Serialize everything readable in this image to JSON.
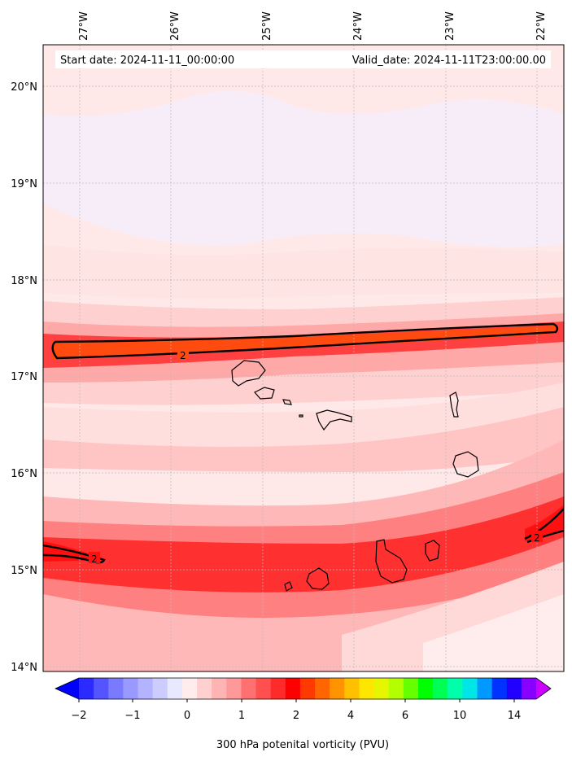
{
  "header": {
    "start_date": "Start date: 2024-11-11_00:00:00",
    "valid_date": "Valid_date: 2024-11-11T23:00:00.00"
  },
  "map": {
    "longitude_labels": [
      "27°W",
      "26°W",
      "25°W",
      "24°W",
      "23°W",
      "22°W"
    ],
    "latitude_labels": [
      "20°N",
      "19°N",
      "18°N",
      "17°N",
      "16°N",
      "15°N",
      "14°N"
    ],
    "contour_value_label": "2"
  },
  "colorbar": {
    "tick_labels": [
      "−2",
      "−1",
      "0",
      "1",
      "2",
      "4",
      "6",
      "10",
      "14"
    ],
    "title": "300 hPa potenital vorticity (PVU)",
    "colors": [
      "#0000ff",
      "#2b2bff",
      "#5555ff",
      "#7a7aff",
      "#9999ff",
      "#b3b3ff",
      "#ccccff",
      "#e8e8ff",
      "#ffecec",
      "#ffd0d0",
      "#ffb4b4",
      "#ff9898",
      "#ff7070",
      "#ff4f4f",
      "#ff2a2a",
      "#ff0000",
      "#ff3a00",
      "#ff6600",
      "#ff9300",
      "#ffc000",
      "#ffe600",
      "#e6f500",
      "#b3ff00",
      "#66ff00",
      "#00ff00",
      "#00ff55",
      "#00ffaa",
      "#00e6e6",
      "#0099ff",
      "#0033ff",
      "#2200ff",
      "#8800ff",
      "#cc00ff"
    ]
  }
}
